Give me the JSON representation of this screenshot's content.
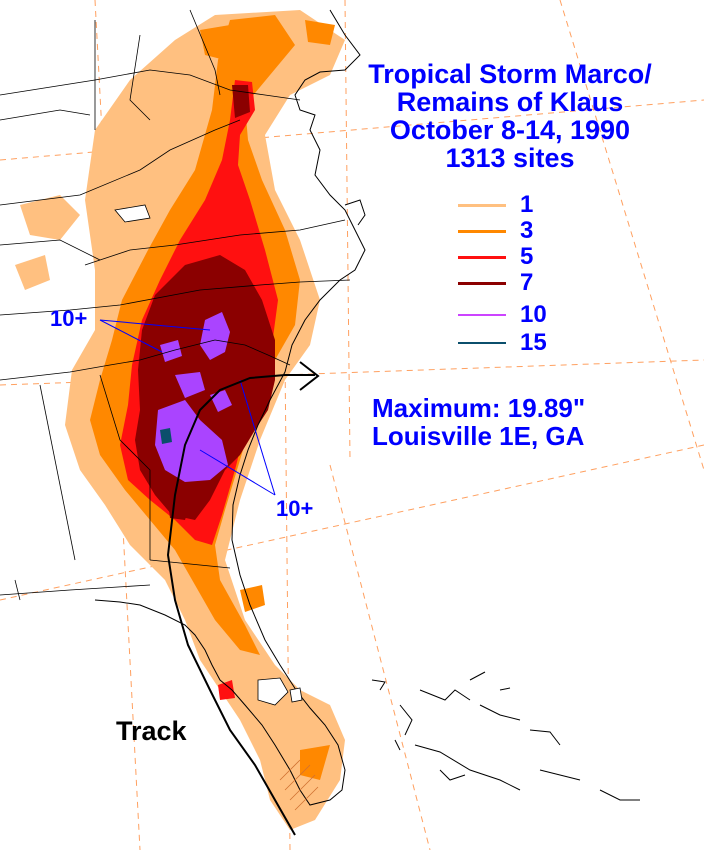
{
  "title": {
    "line1": "Tropical Storm Marco/",
    "line2": "Remains of Klaus",
    "line3": "October 8-14, 1990",
    "line4": "1313 sites"
  },
  "legend": [
    {
      "label": "1",
      "color": "#ffc080"
    },
    {
      "label": "3",
      "color": "#ff8800"
    },
    {
      "label": "5",
      "color": "#ff1010"
    },
    {
      "label": "7",
      "color": "#8b0000"
    },
    {
      "label": "10",
      "color": "#cc44ff"
    },
    {
      "label": "15",
      "color": "#0b4f6c"
    }
  ],
  "maximum": {
    "value_text": "Maximum: 19.89\"",
    "location_text": "Louisville 1E, GA"
  },
  "callouts": {
    "upper": "10+",
    "lower": "10+"
  },
  "track_label": "Track",
  "colors": {
    "text": "#0000ff",
    "track": "#000000",
    "boundaries": "#000000",
    "gridlines": "#ffa060"
  }
}
